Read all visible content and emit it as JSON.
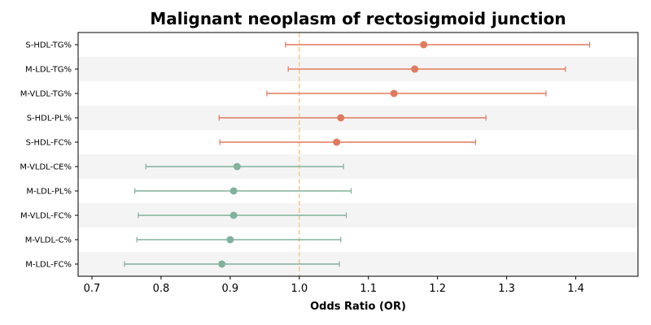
{
  "chart_data": {
    "type": "forest",
    "title": "Malignant neoplasm of rectosigmoid junction",
    "xlabel": "Odds Ratio (OR)",
    "ylabel": "",
    "xlim": [
      0.68,
      1.49
    ],
    "xticks": [
      0.7,
      0.8,
      0.9,
      1.0,
      1.1,
      1.2,
      1.3,
      1.4
    ],
    "xtick_labels": [
      "0.7",
      "0.8",
      "0.9",
      "1.0",
      "1.1",
      "1.2",
      "1.3",
      "1.4"
    ],
    "reference_line": 1.0,
    "alternating_row_shading": true,
    "grid": false,
    "colors": {
      "risk": "#e07a5f",
      "protective": "#81b29a",
      "reference": "#f2cc8f",
      "band": "#f4f4f4"
    },
    "rows": [
      {
        "label": "S-HDL-TG%",
        "or": 1.18,
        "lo": 0.98,
        "hi": 1.42
      },
      {
        "label": "M-LDL-TG%",
        "or": 1.167,
        "lo": 0.984,
        "hi": 1.385
      },
      {
        "label": "M-VLDL-TG%",
        "or": 1.137,
        "lo": 0.953,
        "hi": 1.357
      },
      {
        "label": "S-HDL-PL%",
        "or": 1.06,
        "lo": 0.884,
        "hi": 1.27
      },
      {
        "label": "S-HDL-FC%",
        "or": 1.054,
        "lo": 0.885,
        "hi": 1.255
      },
      {
        "label": "M-VLDL-CE%",
        "or": 0.91,
        "lo": 0.778,
        "hi": 1.064
      },
      {
        "label": "M-LDL-PL%",
        "or": 0.905,
        "lo": 0.762,
        "hi": 1.075
      },
      {
        "label": "M-VLDL-FC%",
        "or": 0.905,
        "lo": 0.767,
        "hi": 1.068
      },
      {
        "label": "M-VLDL-C%",
        "or": 0.9,
        "lo": 0.765,
        "hi": 1.06
      },
      {
        "label": "M-LDL-FC%",
        "or": 0.888,
        "lo": 0.747,
        "hi": 1.058
      }
    ]
  }
}
